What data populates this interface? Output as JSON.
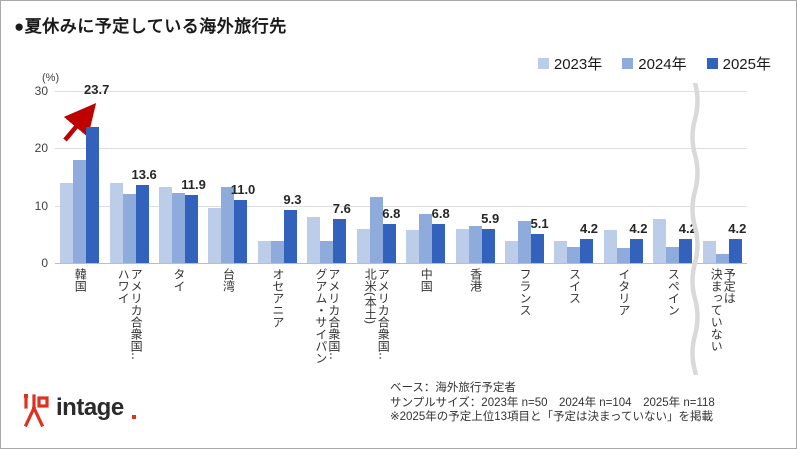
{
  "title": "●夏休みに予定している海外旅行先",
  "y_axis": {
    "unit": "(%)",
    "ticks": [
      "0",
      "10",
      "20",
      "30"
    ],
    "max": 30
  },
  "legend": [
    {
      "label": "2023年",
      "color": "#bccde9"
    },
    {
      "label": "2024年",
      "color": "#8fabdc"
    },
    {
      "label": "2025年",
      "color": "#3262bc"
    }
  ],
  "chart_data": {
    "type": "bar",
    "title": "夏休みに予定している海外旅行先",
    "ylabel": "(%)",
    "ylim": [
      0,
      30
    ],
    "grid": true,
    "legend_position": "top-right",
    "categories": [
      "韓国",
      "アメリカ合衆国‥ハワイ",
      "タイ",
      "台湾",
      "オセアニア",
      "アメリカ合衆国‥グアム・サイパン",
      "アメリカ合衆国‥北米(本土)",
      "中国",
      "香港",
      "フランス",
      "スイス",
      "イタリア",
      "スペイン",
      "予定は決まっていない"
    ],
    "category_lines": [
      [
        "韓国"
      ],
      [
        "アメリカ合衆国‥",
        "ハワイ"
      ],
      [
        "タイ"
      ],
      [
        "台湾"
      ],
      [
        "オセアニア"
      ],
      [
        "アメリカ合衆国‥",
        "グアム・サイパン"
      ],
      [
        "アメリカ合衆国‥",
        "北米(本土)"
      ],
      [
        "中国"
      ],
      [
        "香港"
      ],
      [
        "フランス"
      ],
      [
        "スイス"
      ],
      [
        "イタリア"
      ],
      [
        "スペイン"
      ],
      [
        "予定は",
        "決まっていない"
      ]
    ],
    "series": [
      {
        "name": "2023年",
        "color": "#bccde9",
        "values": [
          14.0,
          14.0,
          13.3,
          9.6,
          3.9,
          8.0,
          6.0,
          5.7,
          5.9,
          3.8,
          3.8,
          5.7,
          7.6,
          3.9
        ]
      },
      {
        "name": "2024年",
        "color": "#8fabdc",
        "values": [
          18.0,
          12.0,
          12.2,
          13.3,
          3.9,
          3.9,
          11.5,
          8.5,
          6.5,
          7.4,
          2.8,
          2.7,
          2.8,
          1.5
        ]
      },
      {
        "name": "2025年",
        "color": "#3262bc",
        "values": [
          23.7,
          13.6,
          11.9,
          11.0,
          9.3,
          7.6,
          6.8,
          6.8,
          5.9,
          5.1,
          4.2,
          4.2,
          4.2,
          4.2
        ],
        "labels_shown": true
      }
    ],
    "value_labels_2025": [
      "23.7",
      "13.6",
      "11.9",
      "11.0",
      "9.3",
      "7.6",
      "6.8",
      "6.8",
      "5.9",
      "5.1",
      "4.2",
      "4.2",
      "4.2",
      "4.2"
    ],
    "annotations": {
      "red_arrow_on": "韓国 2025年 (increase)",
      "arrow_color": "#be0000"
    },
    "axis_break_before_index": 13
  },
  "footer": {
    "notes": [
      "ベース：海外旅行予定者",
      "サンプルサイズ：2023年 n=50　2024年 n=104　2025年 n=118",
      "※2025年の予定上位13項目と「予定は決まっていない」を掲載"
    ],
    "logo_text": "intage"
  },
  "colors": {
    "gridline": "#dedede",
    "axis_line": "#bdbdbd",
    "arrow": "#be0000",
    "break_wave": "#d9d9d9",
    "logo_red": "#e0301e"
  }
}
